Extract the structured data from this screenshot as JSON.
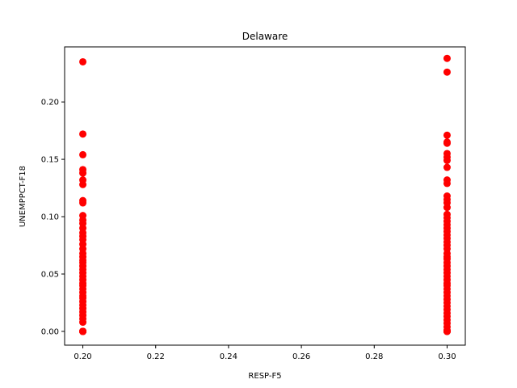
{
  "chart_data": {
    "type": "scatter",
    "title": "Delaware",
    "xlabel": "RESP-F5",
    "ylabel": "UNEMPPCT-F18",
    "xlim": [
      0.195,
      0.305
    ],
    "ylim": [
      -0.012,
      0.248
    ],
    "xticks": [
      0.2,
      0.22,
      0.24,
      0.26,
      0.28,
      0.3
    ],
    "xtick_labels": [
      "0.20",
      "0.22",
      "0.24",
      "0.26",
      "0.28",
      "0.30"
    ],
    "yticks": [
      0.0,
      0.05,
      0.1,
      0.15,
      0.2
    ],
    "ytick_labels": [
      "0.00",
      "0.05",
      "0.10",
      "0.15",
      "0.20"
    ],
    "grid": false,
    "marker_color": "#ff0000",
    "series": [
      {
        "x": [
          0.2,
          0.2,
          0.2,
          0.2,
          0.2,
          0.2,
          0.2,
          0.2,
          0.2,
          0.2,
          0.2,
          0.2,
          0.2,
          0.2,
          0.2,
          0.2,
          0.2,
          0.2,
          0.2,
          0.2,
          0.2,
          0.2,
          0.2,
          0.2,
          0.2,
          0.2,
          0.2,
          0.2,
          0.2,
          0.2,
          0.2,
          0.2,
          0.2,
          0.2,
          0.2,
          0.2,
          0.2,
          0.2,
          0.2,
          0.2,
          0.2,
          0.2,
          0.2,
          0.2,
          0.2,
          0.2,
          0.2,
          0.2,
          0.2,
          0.2
        ],
        "y": [
          0.235,
          0.172,
          0.154,
          0.141,
          0.138,
          0.132,
          0.128,
          0.114,
          0.112,
          0.101,
          0.097,
          0.094,
          0.09,
          0.086,
          0.083,
          0.08,
          0.076,
          0.072,
          0.068,
          0.065,
          0.062,
          0.06,
          0.057,
          0.054,
          0.051,
          0.048,
          0.045,
          0.042,
          0.04,
          0.037,
          0.034,
          0.031,
          0.029,
          0.026,
          0.023,
          0.02,
          0.017,
          0.014,
          0.011,
          0.008,
          0.0,
          0.0,
          0.0,
          0.0,
          0.0,
          0.0,
          0.0,
          0.0,
          0.0,
          0.0
        ]
      },
      {
        "x": [
          0.3,
          0.3,
          0.3,
          0.3,
          0.3,
          0.3,
          0.3,
          0.3,
          0.3,
          0.3,
          0.3,
          0.3,
          0.3,
          0.3,
          0.3,
          0.3,
          0.3,
          0.3,
          0.3,
          0.3,
          0.3,
          0.3,
          0.3,
          0.3,
          0.3,
          0.3,
          0.3,
          0.3,
          0.3,
          0.3,
          0.3,
          0.3,
          0.3,
          0.3,
          0.3,
          0.3,
          0.3,
          0.3,
          0.3,
          0.3,
          0.3,
          0.3,
          0.3,
          0.3,
          0.3,
          0.3,
          0.3,
          0.3,
          0.3,
          0.3,
          0.3,
          0.3,
          0.3,
          0.3,
          0.3
        ],
        "y": [
          0.238,
          0.226,
          0.171,
          0.165,
          0.164,
          0.155,
          0.152,
          0.149,
          0.143,
          0.132,
          0.129,
          0.118,
          0.115,
          0.112,
          0.108,
          0.102,
          0.099,
          0.096,
          0.093,
          0.09,
          0.087,
          0.084,
          0.081,
          0.078,
          0.075,
          0.072,
          0.068,
          0.065,
          0.063,
          0.06,
          0.057,
          0.054,
          0.051,
          0.048,
          0.045,
          0.042,
          0.04,
          0.037,
          0.034,
          0.031,
          0.028,
          0.025,
          0.022,
          0.019,
          0.016,
          0.013,
          0.01,
          0.007,
          0.004,
          0.001,
          0.0,
          0.0,
          0.0,
          0.0,
          0.0
        ]
      }
    ]
  }
}
